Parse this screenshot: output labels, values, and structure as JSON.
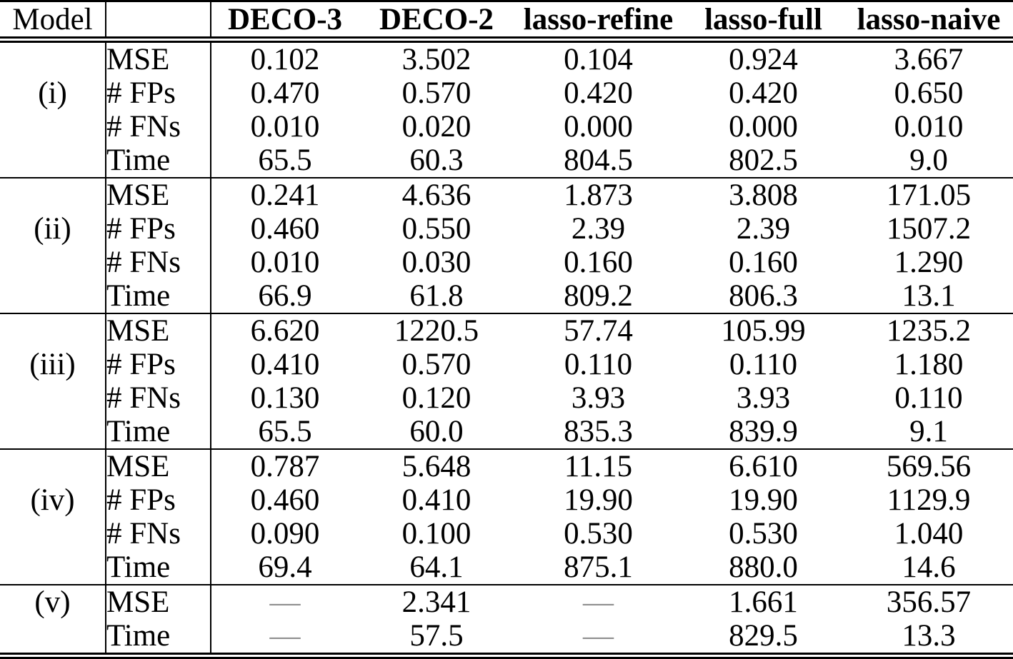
{
  "table": {
    "dash": "—",
    "colors": {
      "text": "#000000",
      "dash": "#8f8f8f",
      "rule": "#000000",
      "background": "#ffffff"
    },
    "header": {
      "model": "Model",
      "metric": "",
      "columns": [
        "DECO-3",
        "DECO-2",
        "lasso-refine",
        "lasso-full",
        "lasso-naive"
      ]
    },
    "groups": [
      {
        "model": "(i)",
        "label_row": 1,
        "rows": [
          {
            "metric": "MSE",
            "values": [
              "0.102",
              "3.502",
              "0.104",
              "0.924",
              "3.667"
            ]
          },
          {
            "metric": "# FPs",
            "values": [
              "0.470",
              "0.570",
              "0.420",
              "0.420",
              "0.650"
            ]
          },
          {
            "metric": "# FNs",
            "values": [
              "0.010",
              "0.020",
              "0.000",
              "0.000",
              "0.010"
            ]
          },
          {
            "metric": "Time",
            "values": [
              "65.5",
              "60.3",
              "804.5",
              "802.5",
              "9.0"
            ]
          }
        ]
      },
      {
        "model": "(ii)",
        "label_row": 1,
        "rows": [
          {
            "metric": "MSE",
            "values": [
              "0.241",
              "4.636",
              "1.873",
              "3.808",
              "171.05"
            ]
          },
          {
            "metric": "# FPs",
            "values": [
              "0.460",
              "0.550",
              "2.39",
              "2.39",
              "1507.2"
            ]
          },
          {
            "metric": "# FNs",
            "values": [
              "0.010",
              "0.030",
              "0.160",
              "0.160",
              "1.290"
            ]
          },
          {
            "metric": "Time",
            "values": [
              "66.9",
              "61.8",
              "809.2",
              "806.3",
              "13.1"
            ]
          }
        ]
      },
      {
        "model": "(iii)",
        "label_row": 1,
        "rows": [
          {
            "metric": "MSE",
            "values": [
              "6.620",
              "1220.5",
              "57.74",
              "105.99",
              "1235.2"
            ]
          },
          {
            "metric": "# FPs",
            "values": [
              "0.410",
              "0.570",
              "0.110",
              "0.110",
              "1.180"
            ]
          },
          {
            "metric": "# FNs",
            "values": [
              "0.130",
              "0.120",
              "3.93",
              "3.93",
              "0.110"
            ]
          },
          {
            "metric": "Time",
            "values": [
              "65.5",
              "60.0",
              "835.3",
              "839.9",
              "9.1"
            ]
          }
        ]
      },
      {
        "model": "(iv)",
        "label_row": 1,
        "rows": [
          {
            "metric": "MSE",
            "values": [
              "0.787",
              "5.648",
              "11.15",
              "6.610",
              "569.56"
            ]
          },
          {
            "metric": "# FPs",
            "values": [
              "0.460",
              "0.410",
              "19.90",
              "19.90",
              "1129.9"
            ]
          },
          {
            "metric": "# FNs",
            "values": [
              "0.090",
              "0.100",
              "0.530",
              "0.530",
              "1.040"
            ]
          },
          {
            "metric": "Time",
            "values": [
              "69.4",
              "64.1",
              "875.1",
              "880.0",
              "14.6"
            ]
          }
        ]
      },
      {
        "model": "(v)",
        "label_row": 0,
        "rows": [
          {
            "metric": "MSE",
            "values": [
              "—",
              "2.341",
              "—",
              "1.661",
              "356.57"
            ]
          },
          {
            "metric": "Time",
            "values": [
              "—",
              "57.5",
              "—",
              "829.5",
              "13.3"
            ]
          }
        ]
      }
    ]
  }
}
